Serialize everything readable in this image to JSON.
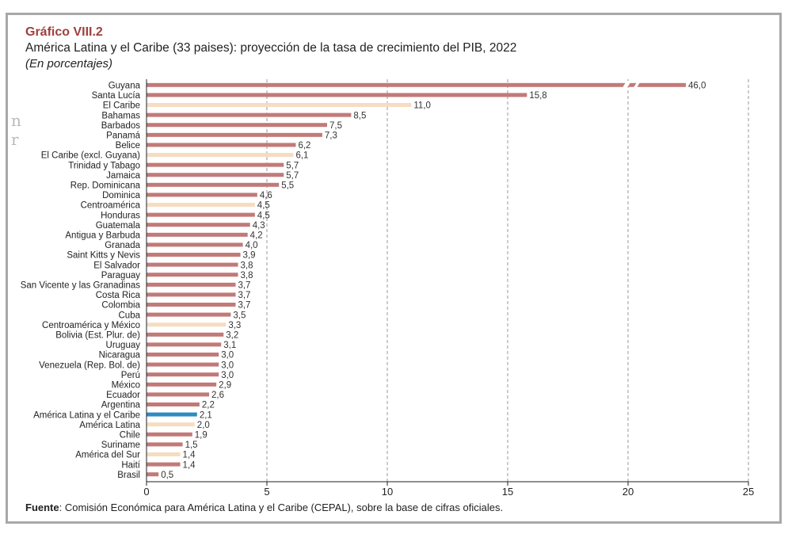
{
  "figure": {
    "number": "Gráfico VIII.2",
    "title": "América Latina y el Caribe (33 paises): proyección de la tasa de crecimiento del PIB, 2022",
    "subtitle": "(En porcentajes)"
  },
  "source": {
    "label": "Fuente",
    "text": ": Comisión Económica para América Latina y el Caribe (CEPAL), sobre la base de cifras oficiales."
  },
  "colors": {
    "country": "#c17a78",
    "aggregate": "#f6dcc0",
    "highlight": "#2e8bc0",
    "grid": "#999999"
  },
  "chart_data": {
    "type": "bar",
    "orientation": "horizontal",
    "xlim": [
      0,
      25
    ],
    "xticks": [
      "0",
      "5",
      "10",
      "15",
      "20",
      "25"
    ],
    "grid": "vertical dashed",
    "axis_break": {
      "value": 46.0,
      "note": "bar broken near 20"
    },
    "categories": [
      "Guyana",
      "Santa Lucía",
      "El Caribe",
      "Bahamas",
      "Barbados",
      "Panamá",
      "Belice",
      "El Caribe (excl. Guyana)",
      "Trinidad y Tabago",
      "Jamaica",
      "Rep. Dominicana",
      "Dominica",
      "Centroamérica",
      "Honduras",
      "Guatemala",
      "Antigua y Barbuda",
      "Granada",
      "Saint Kitts y Nevis",
      "El Salvador",
      "Paraguay",
      "San Vicente y las Granadinas",
      "Costa Rica",
      "Colombia",
      "Cuba",
      "Centroamérica y México",
      "Bolivia (Est. Plur. de)",
      "Uruguay",
      "Nicaragua",
      "Venezuela (Rep. Bol. de)",
      "Perú",
      "México",
      "Ecuador",
      "Argentina",
      "América Latina y el Caribe",
      "América Latina",
      "Chile",
      "Suriname",
      "América del Sur",
      "Haití",
      "Brasil"
    ],
    "values": [
      46.0,
      15.8,
      11.0,
      8.5,
      7.5,
      7.3,
      6.2,
      6.1,
      5.7,
      5.7,
      5.5,
      4.6,
      4.5,
      4.5,
      4.3,
      4.2,
      4.0,
      3.9,
      3.8,
      3.8,
      3.7,
      3.7,
      3.7,
      3.5,
      3.3,
      3.2,
      3.1,
      3.0,
      3.0,
      3.0,
      2.9,
      2.6,
      2.2,
      2.1,
      2.0,
      1.9,
      1.5,
      1.4,
      1.4,
      0.5
    ],
    "value_labels": [
      "46,0",
      "15,8",
      "11,0",
      "8,5",
      "7,5",
      "7,3",
      "6,2",
      "6,1",
      "5,7",
      "5,7",
      "5,5",
      "4,6",
      "4,5",
      "4,5",
      "4,3",
      "4,2",
      "4,0",
      "3,9",
      "3,8",
      "3,8",
      "3,7",
      "3,7",
      "3,7",
      "3,5",
      "3,3",
      "3,2",
      "3,1",
      "3,0",
      "3,0",
      "3,0",
      "2,9",
      "2,6",
      "2,2",
      "2,1",
      "2,0",
      "1,9",
      "1,5",
      "1,4",
      "1,4",
      "0,5"
    ],
    "groups": [
      "country",
      "country",
      "aggregate",
      "country",
      "country",
      "country",
      "country",
      "aggregate",
      "country",
      "country",
      "country",
      "country",
      "aggregate",
      "country",
      "country",
      "country",
      "country",
      "country",
      "country",
      "country",
      "country",
      "country",
      "country",
      "country",
      "aggregate",
      "country",
      "country",
      "country",
      "country",
      "country",
      "country",
      "country",
      "country",
      "highlight",
      "aggregate",
      "country",
      "country",
      "aggregate",
      "country",
      "country"
    ]
  }
}
